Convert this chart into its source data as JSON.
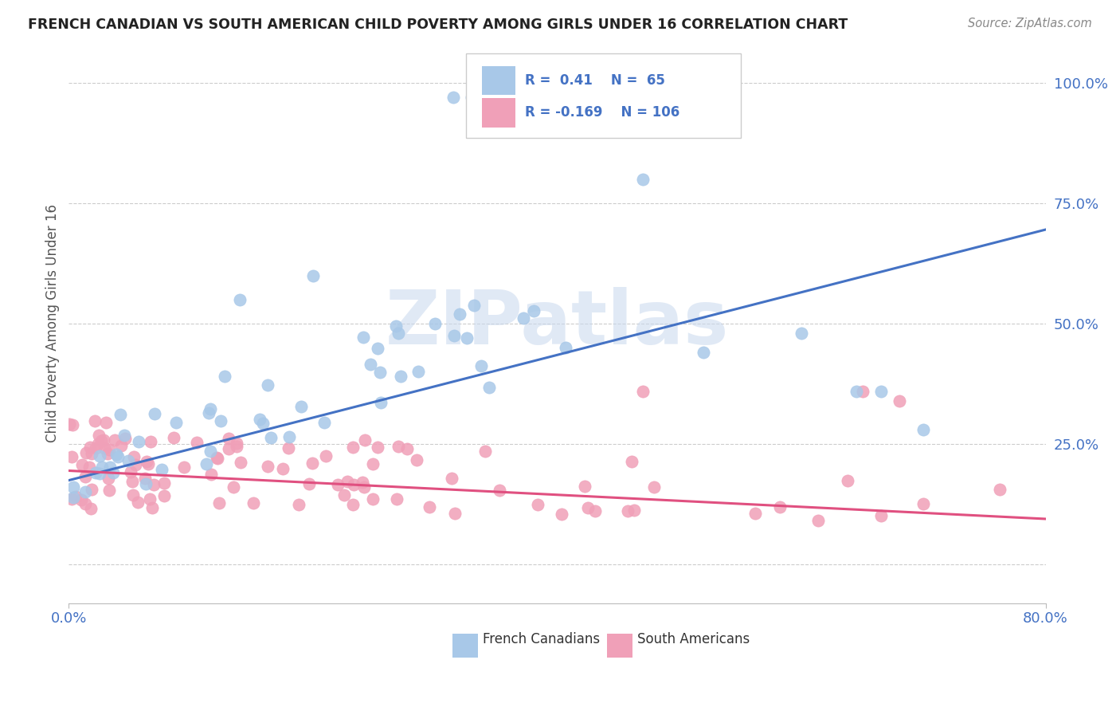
{
  "title": "FRENCH CANADIAN VS SOUTH AMERICAN CHILD POVERTY AMONG GIRLS UNDER 16 CORRELATION CHART",
  "source": "Source: ZipAtlas.com",
  "ylabel": "Child Poverty Among Girls Under 16",
  "xlim": [
    0.0,
    0.8
  ],
  "ylim": [
    -0.08,
    1.08
  ],
  "ytick_positions": [
    0.0,
    0.25,
    0.5,
    0.75,
    1.0
  ],
  "ytick_labels": [
    "",
    "25.0%",
    "50.0%",
    "75.0%",
    "100.0%"
  ],
  "blue_color": "#a8c8e8",
  "pink_color": "#f0a0b8",
  "blue_line_color": "#4472c4",
  "pink_line_color": "#e05080",
  "blue_R": 0.41,
  "blue_N": 65,
  "pink_R": -0.169,
  "pink_N": 106,
  "watermark_text": "ZIPatlas",
  "watermark_color": "#c8d8ee",
  "legend_label_blue": "French Canadians",
  "legend_label_pink": "South Americans",
  "background_color": "#ffffff",
  "grid_color": "#cccccc",
  "title_color": "#222222",
  "axis_label_color": "#555555",
  "tick_color": "#4472c4",
  "source_color": "#888888",
  "fig_width": 14.06,
  "fig_height": 8.92,
  "blue_line_x": [
    0.0,
    0.8
  ],
  "blue_line_y": [
    0.175,
    0.695
  ],
  "pink_line_x": [
    0.0,
    0.8
  ],
  "pink_line_y": [
    0.195,
    0.095
  ]
}
